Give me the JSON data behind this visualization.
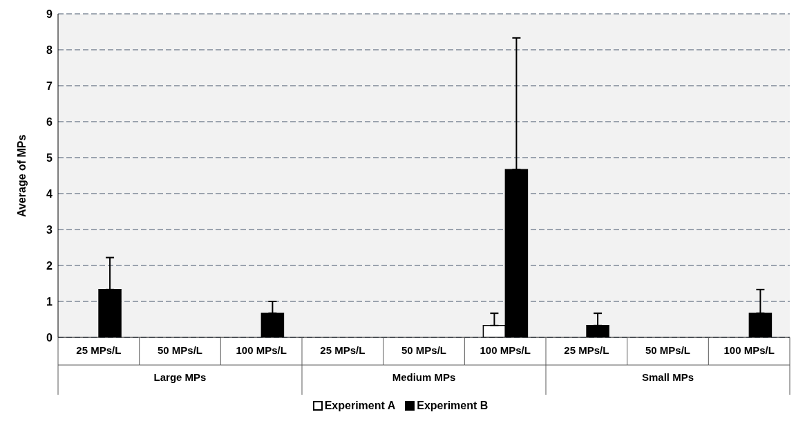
{
  "chart_data": {
    "type": "bar",
    "ylabel": "Average of MPs",
    "categories": [
      "25 MPs/L",
      "50 MPs/L",
      "100 MPs/L",
      "25 MPs/L",
      "50 MPs/L",
      "100 MPs/L",
      "25 MPs/L",
      "50 MPs/L",
      "100 MPs/L"
    ],
    "annotations": [
      "Large MPs",
      "Medium MPs",
      "Small MPs"
    ],
    "series": [
      {
        "name": "Experiment A",
        "color": "#ffffff",
        "values": [
          0,
          0,
          0,
          0,
          0,
          0.33,
          0,
          0,
          0
        ],
        "errors": [
          null,
          null,
          null,
          null,
          null,
          [
            0.33,
            0.67
          ],
          null,
          null,
          null
        ]
      },
      {
        "name": "Experiment B",
        "color": "#000000",
        "values": [
          1.33,
          0,
          0.67,
          0,
          0,
          4.67,
          0.33,
          0,
          0.67
        ],
        "errors": [
          [
            1.33,
            2.22
          ],
          null,
          [
            0.67,
            1.0
          ],
          null,
          null,
          [
            4.67,
            8.33
          ],
          [
            0.33,
            0.67
          ],
          null,
          [
            0.67,
            1.33
          ]
        ]
      }
    ],
    "ylim": [
      0,
      9
    ],
    "yticks": [
      0,
      1,
      2,
      3,
      4,
      5,
      6,
      7,
      8,
      9
    ],
    "grid": "y",
    "legend": "bottom"
  }
}
